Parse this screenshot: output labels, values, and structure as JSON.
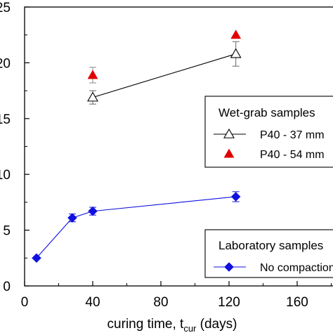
{
  "chart_data": {
    "type": "scatter",
    "xlabel": "curing time, ",
    "xlabel_sub_var": "t",
    "xlabel_sub": "cur",
    "xlabel_unit": " (days)",
    "xlim": [
      0,
      200
    ],
    "ylim": [
      0,
      25
    ],
    "x_ticks": [
      "0",
      "40",
      "80",
      "120",
      "160"
    ],
    "y_ticks": [
      "0",
      "5",
      "10",
      "15",
      "20",
      "25"
    ],
    "grid": false,
    "series": [
      {
        "name": "P40 - 37 mm",
        "marker": "open-triangle",
        "color": "#000000",
        "connected": true,
        "x": [
          40,
          124
        ],
        "y": [
          16.9,
          20.8
        ],
        "err": [
          0.6,
          1.1
        ]
      },
      {
        "name": "P40 - 54 mm",
        "marker": "filled-triangle",
        "color": "#e00000",
        "connected": false,
        "x": [
          40,
          124
        ],
        "y": [
          18.9,
          22.5
        ],
        "err": [
          0.7,
          0
        ]
      },
      {
        "name": "No compaction",
        "marker": "filled-diamond",
        "color": "#1010e0",
        "connected": true,
        "x": [
          7,
          28,
          40,
          124
        ],
        "y": [
          2.5,
          6.1,
          6.7,
          8.0
        ],
        "err": [
          0,
          0.35,
          0.35,
          0.45
        ]
      }
    ],
    "legend_groups": [
      {
        "title": "Wet-grab samples",
        "placement": "right",
        "entries": [
          0,
          1
        ]
      },
      {
        "title": "Laboratory samples",
        "placement": "bottom-right",
        "entries": [
          2
        ]
      }
    ]
  }
}
